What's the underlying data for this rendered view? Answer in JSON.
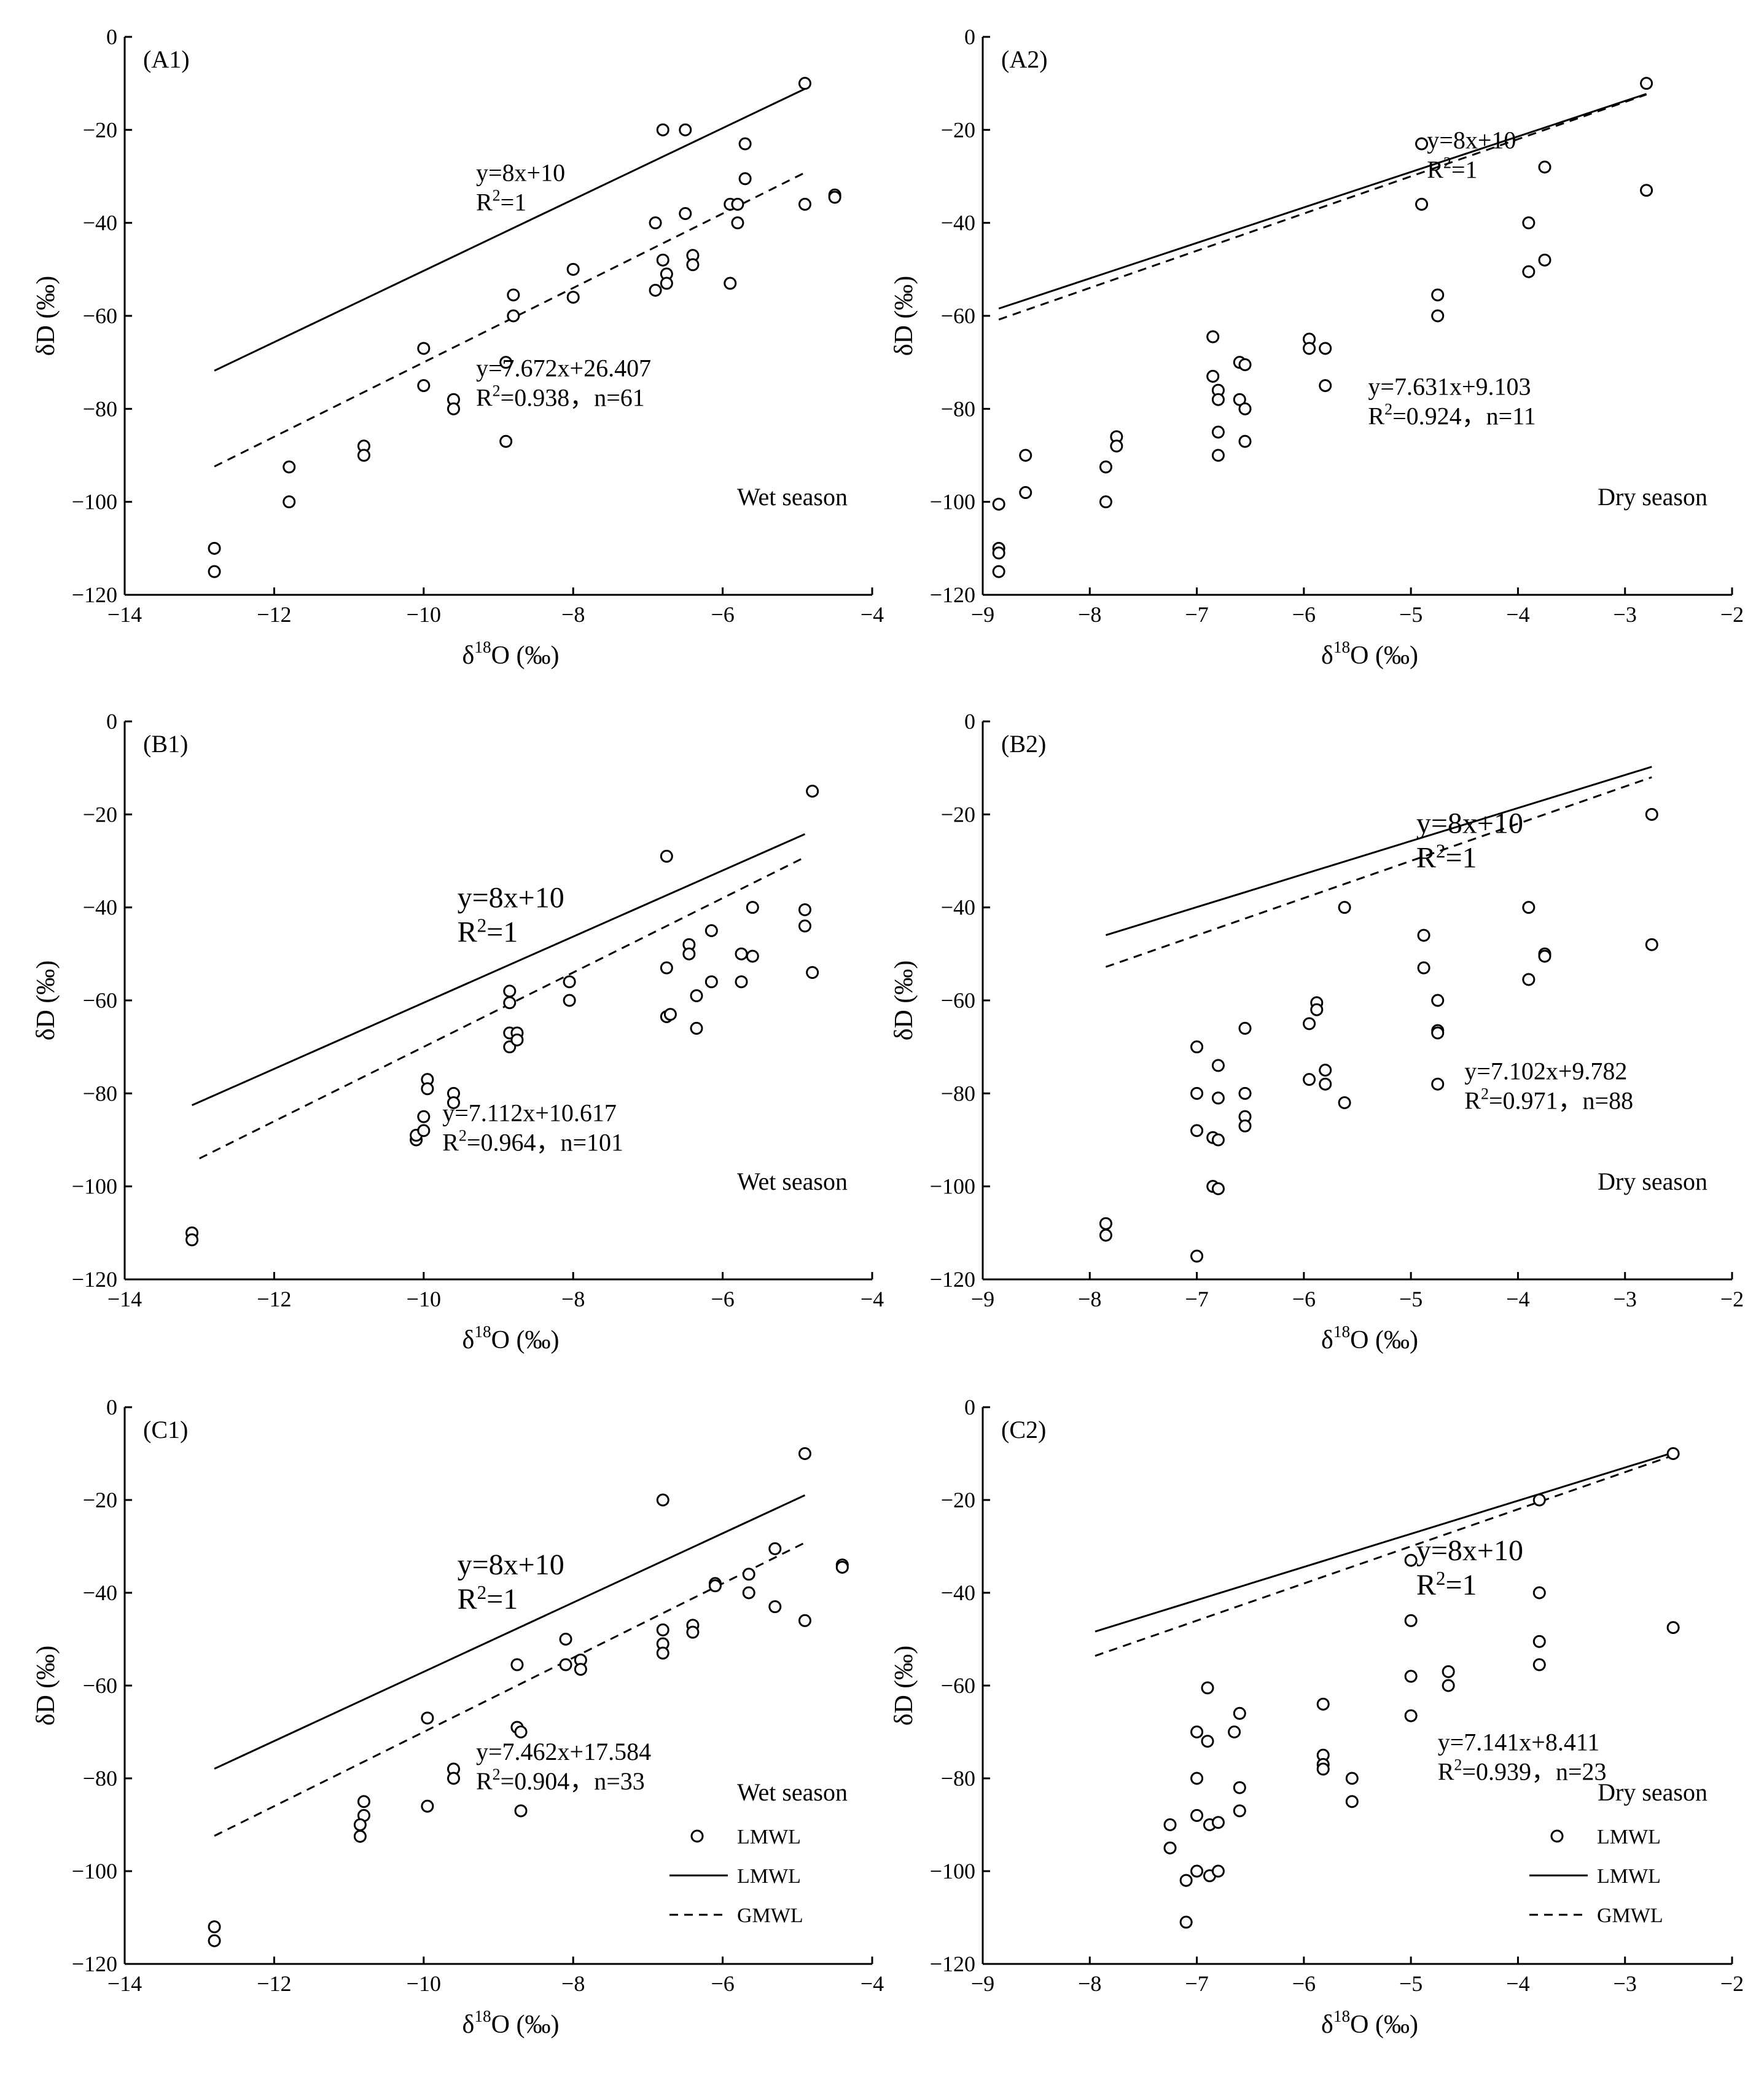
{
  "figure": {
    "wet_label": "Wet season",
    "dry_label": "Dry season",
    "legend": [
      "LMWL",
      "LMWL",
      "GMWL"
    ]
  },
  "chart_data": [
    {
      "id": "A1",
      "label": "(A1)",
      "type": "scatter",
      "xlabel": "δ18O (‰)",
      "ylabel": "δD (‰)",
      "xlim": [
        -14,
        -4
      ],
      "ylim": [
        -120,
        0
      ],
      "xticks": [
        -14,
        -12,
        -10,
        -8,
        -6,
        -4
      ],
      "yticks": [
        0,
        -20,
        -40,
        -60,
        -80,
        -100,
        -120
      ],
      "season": "Wet season",
      "gmwl": {
        "slope": 8,
        "intercept": 10,
        "x_range": [
          -12.8,
          -4.9
        ],
        "eq": "y=8x+10",
        "r2": "R2=1"
      },
      "lmwl": {
        "slope": 7.672,
        "intercept": 26.407,
        "x_range": [
          -12.8,
          -4.9
        ],
        "eq": "y=7.672x+26.407",
        "r2": "R2=0.938，n=61"
      },
      "points": [
        [
          -12.8,
          -110
        ],
        [
          -12.8,
          -115
        ],
        [
          -11.8,
          -92.5
        ],
        [
          -11.8,
          -100
        ],
        [
          -10.8,
          -88
        ],
        [
          -10.8,
          -90
        ],
        [
          -10,
          -67
        ],
        [
          -10,
          -75
        ],
        [
          -9.6,
          -78
        ],
        [
          -9.6,
          -80
        ],
        [
          -8.9,
          -70
        ],
        [
          -8.9,
          -87
        ],
        [
          -8.8,
          -55.5
        ],
        [
          -8.8,
          -60
        ],
        [
          -8,
          -50
        ],
        [
          -8,
          -56
        ],
        [
          -6.9,
          -40
        ],
        [
          -6.9,
          -54.5
        ],
        [
          -6.8,
          -20
        ],
        [
          -6.8,
          -48
        ],
        [
          -6.75,
          -51
        ],
        [
          -6.75,
          -53
        ],
        [
          -6.5,
          -20
        ],
        [
          -6.5,
          -38
        ],
        [
          -6.4,
          -47
        ],
        [
          -6.4,
          -49
        ],
        [
          -5.9,
          -36
        ],
        [
          -5.9,
          -53
        ],
        [
          -5.8,
          -36
        ],
        [
          -5.8,
          -40
        ],
        [
          -5.7,
          -23
        ],
        [
          -5.7,
          -30.5
        ],
        [
          -4.9,
          -10
        ],
        [
          -4.9,
          -36
        ],
        [
          -4.5,
          -34
        ],
        [
          -4.5,
          -34.5
        ]
      ]
    },
    {
      "id": "A2",
      "label": "(A2)",
      "type": "scatter",
      "xlabel": "δ18O (‰)",
      "ylabel": "δD (‰)",
      "xlim": [
        -9,
        -2
      ],
      "ylim": [
        -120,
        0
      ],
      "xticks": [
        -9,
        -8,
        -7,
        -6,
        -5,
        -4,
        -3,
        -2
      ],
      "yticks": [
        0,
        -20,
        -40,
        -60,
        -80,
        -100,
        -120
      ],
      "season": "Dry season",
      "gmwl": {
        "slope": 8,
        "intercept": 10,
        "x_range": [
          -8.85,
          -2.8
        ],
        "eq": "y=8x+10",
        "r2": "R2=1"
      },
      "lmwl": {
        "slope": 7.631,
        "intercept": 9.103,
        "x_range": [
          -8.85,
          -2.8
        ],
        "eq": "y=7.631x+9.103",
        "r2": "R2=0.924，n=11"
      },
      "points": [
        [
          -8.85,
          -100.5
        ],
        [
          -8.85,
          -110
        ],
        [
          -8.85,
          -111
        ],
        [
          -8.85,
          -115
        ],
        [
          -8.6,
          -90
        ],
        [
          -8.6,
          -98
        ],
        [
          -7.85,
          -92.5
        ],
        [
          -7.85,
          -100
        ],
        [
          -7.75,
          -86
        ],
        [
          -7.75,
          -88
        ],
        [
          -6.85,
          -64.5
        ],
        [
          -6.85,
          -73
        ],
        [
          -6.8,
          -76
        ],
        [
          -6.8,
          -78
        ],
        [
          -6.8,
          -85
        ],
        [
          -6.8,
          -90
        ],
        [
          -6.6,
          -70
        ],
        [
          -6.55,
          -70.5
        ],
        [
          -6.6,
          -78
        ],
        [
          -6.55,
          -80
        ],
        [
          -6.55,
          -87
        ],
        [
          -5.95,
          -65
        ],
        [
          -5.95,
          -67
        ],
        [
          -5.8,
          -67
        ],
        [
          -5.8,
          -75
        ],
        [
          -4.9,
          -23
        ],
        [
          -4.9,
          -36
        ],
        [
          -4.75,
          -55.5
        ],
        [
          -4.75,
          -60
        ],
        [
          -3.9,
          -40
        ],
        [
          -3.9,
          -50.5
        ],
        [
          -3.75,
          -28
        ],
        [
          -3.75,
          -48
        ],
        [
          -2.8,
          -10
        ],
        [
          -2.8,
          -33
        ]
      ]
    },
    {
      "id": "B1",
      "label": "(B1)",
      "type": "scatter",
      "xlabel": "δ18O (‰)",
      "ylabel": "δD (‰)",
      "xlim": [
        -14,
        -4
      ],
      "ylim": [
        -120,
        0
      ],
      "xticks": [
        -14,
        -12,
        -10,
        -8,
        -6,
        -4
      ],
      "yticks": [
        0,
        -20,
        -40,
        -60,
        -80,
        -100,
        -120
      ],
      "season": "Wet season",
      "gmwl": {
        "slope": 8,
        "intercept": 10,
        "x_range": [
          -13.0,
          -4.9
        ],
        "eq": "y=8x+10",
        "r2": "R2=1"
      },
      "lmwl": {
        "slope": 7.112,
        "intercept": 10.617,
        "x_range": [
          -13.1,
          -4.9
        ],
        "eq": "y=7.112x+10.617",
        "r2": "R2=0.964，n=101"
      },
      "points": [
        [
          -13.1,
          -110
        ],
        [
          -13.1,
          -111.5
        ],
        [
          -10.1,
          -90
        ],
        [
          -10.1,
          -89
        ],
        [
          -10,
          -88
        ],
        [
          -10,
          -85
        ],
        [
          -9.95,
          -77
        ],
        [
          -9.95,
          -79
        ],
        [
          -9.6,
          -80
        ],
        [
          -9.6,
          -82
        ],
        [
          -8.85,
          -58
        ],
        [
          -8.85,
          -60.5
        ],
        [
          -8.85,
          -67
        ],
        [
          -8.85,
          -70
        ],
        [
          -8.75,
          -67
        ],
        [
          -8.75,
          -68.5
        ],
        [
          -8.05,
          -56
        ],
        [
          -8.05,
          -60
        ],
        [
          -6.75,
          -29
        ],
        [
          -6.75,
          -53
        ],
        [
          -6.75,
          -63.5
        ],
        [
          -6.7,
          -63
        ],
        [
          -6.45,
          -48
        ],
        [
          -6.45,
          -50
        ],
        [
          -6.35,
          -59
        ],
        [
          -6.35,
          -66
        ],
        [
          -6.15,
          -45
        ],
        [
          -6.15,
          -56
        ],
        [
          -5.75,
          -50
        ],
        [
          -5.75,
          -56
        ],
        [
          -5.6,
          -40
        ],
        [
          -5.6,
          -50.5
        ],
        [
          -4.9,
          -40.5
        ],
        [
          -4.9,
          -44
        ],
        [
          -4.8,
          -15
        ],
        [
          -4.8,
          -54
        ]
      ]
    },
    {
      "id": "B2",
      "label": "(B2)",
      "type": "scatter",
      "xlabel": "δ18O (‰)",
      "ylabel": "δD (‰)",
      "xlim": [
        -9,
        -2
      ],
      "ylim": [
        -120,
        0
      ],
      "xticks": [
        -9,
        -8,
        -7,
        -6,
        -5,
        -4,
        -3,
        -2
      ],
      "yticks": [
        0,
        -20,
        -40,
        -60,
        -80,
        -100,
        -120
      ],
      "season": "Dry season",
      "gmwl": {
        "slope": 8,
        "intercept": 10,
        "x_range": [
          -7.85,
          -2.75
        ],
        "eq": "y=8x+10",
        "r2": "R2=1"
      },
      "lmwl": {
        "slope": 7.102,
        "intercept": 9.782,
        "x_range": [
          -7.85,
          -2.75
        ],
        "eq": "y=7.102x+9.782",
        "r2": "R2=0.971，n=88"
      },
      "points": [
        [
          -7.85,
          -108
        ],
        [
          -7.85,
          -110.5
        ],
        [
          -7.0,
          -70
        ],
        [
          -7.0,
          -80
        ],
        [
          -7.0,
          -88
        ],
        [
          -7.0,
          -115
        ],
        [
          -6.85,
          -89.5
        ],
        [
          -6.8,
          -90
        ],
        [
          -6.85,
          -100
        ],
        [
          -6.8,
          -100.5
        ],
        [
          -6.8,
          -74
        ],
        [
          -6.8,
          -81
        ],
        [
          -6.55,
          -66
        ],
        [
          -6.55,
          -80
        ],
        [
          -6.55,
          -85
        ],
        [
          -6.55,
          -87
        ],
        [
          -5.95,
          -65
        ],
        [
          -5.95,
          -77
        ],
        [
          -5.88,
          -60.5
        ],
        [
          -5.88,
          -62
        ],
        [
          -5.8,
          -75
        ],
        [
          -5.8,
          -78
        ],
        [
          -5.62,
          -40
        ],
        [
          -5.62,
          -82
        ],
        [
          -4.88,
          -46
        ],
        [
          -4.88,
          -53
        ],
        [
          -4.75,
          -60
        ],
        [
          -4.75,
          -66.5
        ],
        [
          -4.75,
          -67
        ],
        [
          -4.75,
          -78
        ],
        [
          -3.9,
          -40
        ],
        [
          -3.9,
          -55.5
        ],
        [
          -3.75,
          -50
        ],
        [
          -3.75,
          -50.5
        ],
        [
          -2.75,
          -20
        ],
        [
          -2.75,
          -48
        ]
      ]
    },
    {
      "id": "C1",
      "label": "(C1)",
      "type": "scatter",
      "xlabel": "δ18O (‰)",
      "ylabel": "δD (‰)",
      "xlim": [
        -14,
        -4
      ],
      "ylim": [
        -120,
        0
      ],
      "xticks": [
        -14,
        -12,
        -10,
        -8,
        -6,
        -4
      ],
      "yticks": [
        0,
        -20,
        -40,
        -60,
        -80,
        -100,
        -120
      ],
      "season": "Wet season",
      "gmwl": {
        "slope": 8,
        "intercept": 10,
        "x_range": [
          -12.8,
          -4.9
        ],
        "eq": "y=8x+10",
        "r2": "R2=1"
      },
      "lmwl": {
        "slope": 7.462,
        "intercept": 17.584,
        "x_range": [
          -12.8,
          -4.9
        ],
        "eq": "y=7.462x+17.584",
        "r2": "R2=0.904，n=33"
      },
      "points": [
        [
          -12.8,
          -112
        ],
        [
          -12.8,
          -115
        ],
        [
          -10.8,
          -85
        ],
        [
          -10.8,
          -88
        ],
        [
          -10.85,
          -90
        ],
        [
          -10.85,
          -92.5
        ],
        [
          -9.95,
          -67
        ],
        [
          -9.95,
          -86
        ],
        [
          -9.6,
          -78
        ],
        [
          -9.6,
          -80
        ],
        [
          -8.75,
          -55.5
        ],
        [
          -8.75,
          -69
        ],
        [
          -8.7,
          -70
        ],
        [
          -8.7,
          -87
        ],
        [
          -8.1,
          -50
        ],
        [
          -8.1,
          -55.5
        ],
        [
          -7.9,
          -54.5
        ],
        [
          -7.9,
          -56.5
        ],
        [
          -6.8,
          -20
        ],
        [
          -6.8,
          -48
        ],
        [
          -6.8,
          -51
        ],
        [
          -6.8,
          -53
        ],
        [
          -6.4,
          -47
        ],
        [
          -6.4,
          -48.5
        ],
        [
          -6.1,
          -38
        ],
        [
          -6.1,
          -38.5
        ],
        [
          -5.65,
          -36
        ],
        [
          -5.65,
          -40
        ],
        [
          -5.3,
          -30.5
        ],
        [
          -5.3,
          -43
        ],
        [
          -4.9,
          -10
        ],
        [
          -4.9,
          -46
        ],
        [
          -4.4,
          -34
        ],
        [
          -4.4,
          -34.5
        ]
      ]
    },
    {
      "id": "C2",
      "label": "(C2)",
      "type": "scatter",
      "xlabel": "δ18O (‰)",
      "ylabel": "δD (‰)",
      "xlim": [
        -9,
        -2
      ],
      "ylim": [
        -120,
        0
      ],
      "xticks": [
        -9,
        -8,
        -7,
        -6,
        -5,
        -4,
        -3,
        -2
      ],
      "yticks": [
        0,
        -20,
        -40,
        -60,
        -80,
        -100,
        -120
      ],
      "season": "Dry season",
      "gmwl": {
        "slope": 8,
        "intercept": 10,
        "x_range": [
          -7.95,
          -2.55
        ],
        "eq": "y=8x+10",
        "r2": "R2=1"
      },
      "lmwl": {
        "slope": 7.141,
        "intercept": 8.411,
        "x_range": [
          -7.95,
          -2.55
        ],
        "eq": "y=7.141x+8.411",
        "r2": "R2=0.939，n=23"
      },
      "points": [
        [
          -7.25,
          -90
        ],
        [
          -7.25,
          -95
        ],
        [
          -7.1,
          -102
        ],
        [
          -7.1,
          -111
        ],
        [
          -7.0,
          -70
        ],
        [
          -7.0,
          -80
        ],
        [
          -7.0,
          -88
        ],
        [
          -7.0,
          -100
        ],
        [
          -6.9,
          -60.5
        ],
        [
          -6.9,
          -72
        ],
        [
          -6.88,
          -90
        ],
        [
          -6.88,
          -101
        ],
        [
          -6.8,
          -89.5
        ],
        [
          -6.8,
          -100
        ],
        [
          -6.65,
          -70
        ],
        [
          -6.6,
          -66
        ],
        [
          -6.6,
          -82
        ],
        [
          -6.6,
          -87
        ],
        [
          -5.82,
          -64
        ],
        [
          -5.82,
          -75
        ],
        [
          -5.82,
          -77
        ],
        [
          -5.82,
          -78
        ],
        [
          -5.55,
          -80
        ],
        [
          -5.55,
          -85
        ],
        [
          -5.0,
          -33
        ],
        [
          -5.0,
          -46
        ],
        [
          -5.0,
          -58
        ],
        [
          -5.0,
          -66.5
        ],
        [
          -4.65,
          -57
        ],
        [
          -4.65,
          -60
        ],
        [
          -3.8,
          -20
        ],
        [
          -3.8,
          -40
        ],
        [
          -3.8,
          -50.5
        ],
        [
          -3.8,
          -55.5
        ],
        [
          -2.55,
          -10
        ],
        [
          -2.55,
          -47.5
        ]
      ]
    }
  ]
}
